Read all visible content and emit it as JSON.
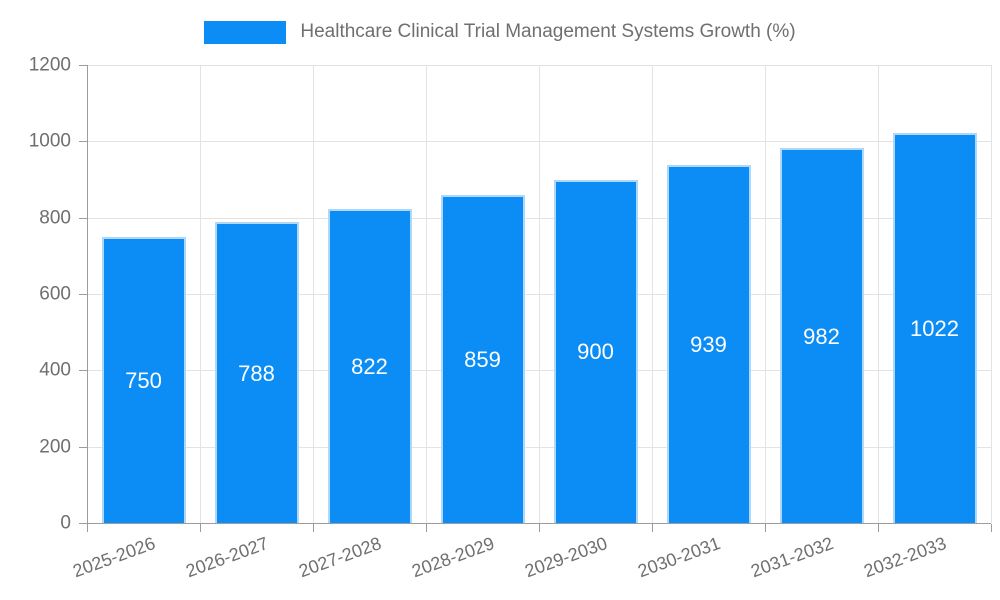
{
  "legend": {
    "label": "Healthcare Clinical Trial Management Systems Growth (%)"
  },
  "chart_data": {
    "type": "bar",
    "title": "Healthcare Clinical Trial Management Systems Growth (%)",
    "categories": [
      "2025-2026",
      "2026-2027",
      "2027-2028",
      "2028-2029",
      "2029-2030",
      "2030-2031",
      "2031-2032",
      "2032-2033"
    ],
    "values": [
      750,
      788,
      822,
      859,
      900,
      939,
      982,
      1022
    ],
    "xlabel": "",
    "ylabel": "",
    "ylim": [
      0,
      1200
    ],
    "ytick_step": 200,
    "yticks": [
      "0",
      "200",
      "400",
      "600",
      "800",
      "1000",
      "1200"
    ],
    "grid": true,
    "legend_position": "top",
    "x_label_rotation_deg": -20,
    "value_labels_inside_bars": true,
    "colors": {
      "bar_fill": "#0b8df5",
      "bar_edge": "#aed7fa",
      "value_label": "#ffffff",
      "axis_text": "#6f6f6f",
      "grid_line": "#e3e3e3",
      "axis_line": "#9c9c9c",
      "background": "#ffffff"
    }
  }
}
